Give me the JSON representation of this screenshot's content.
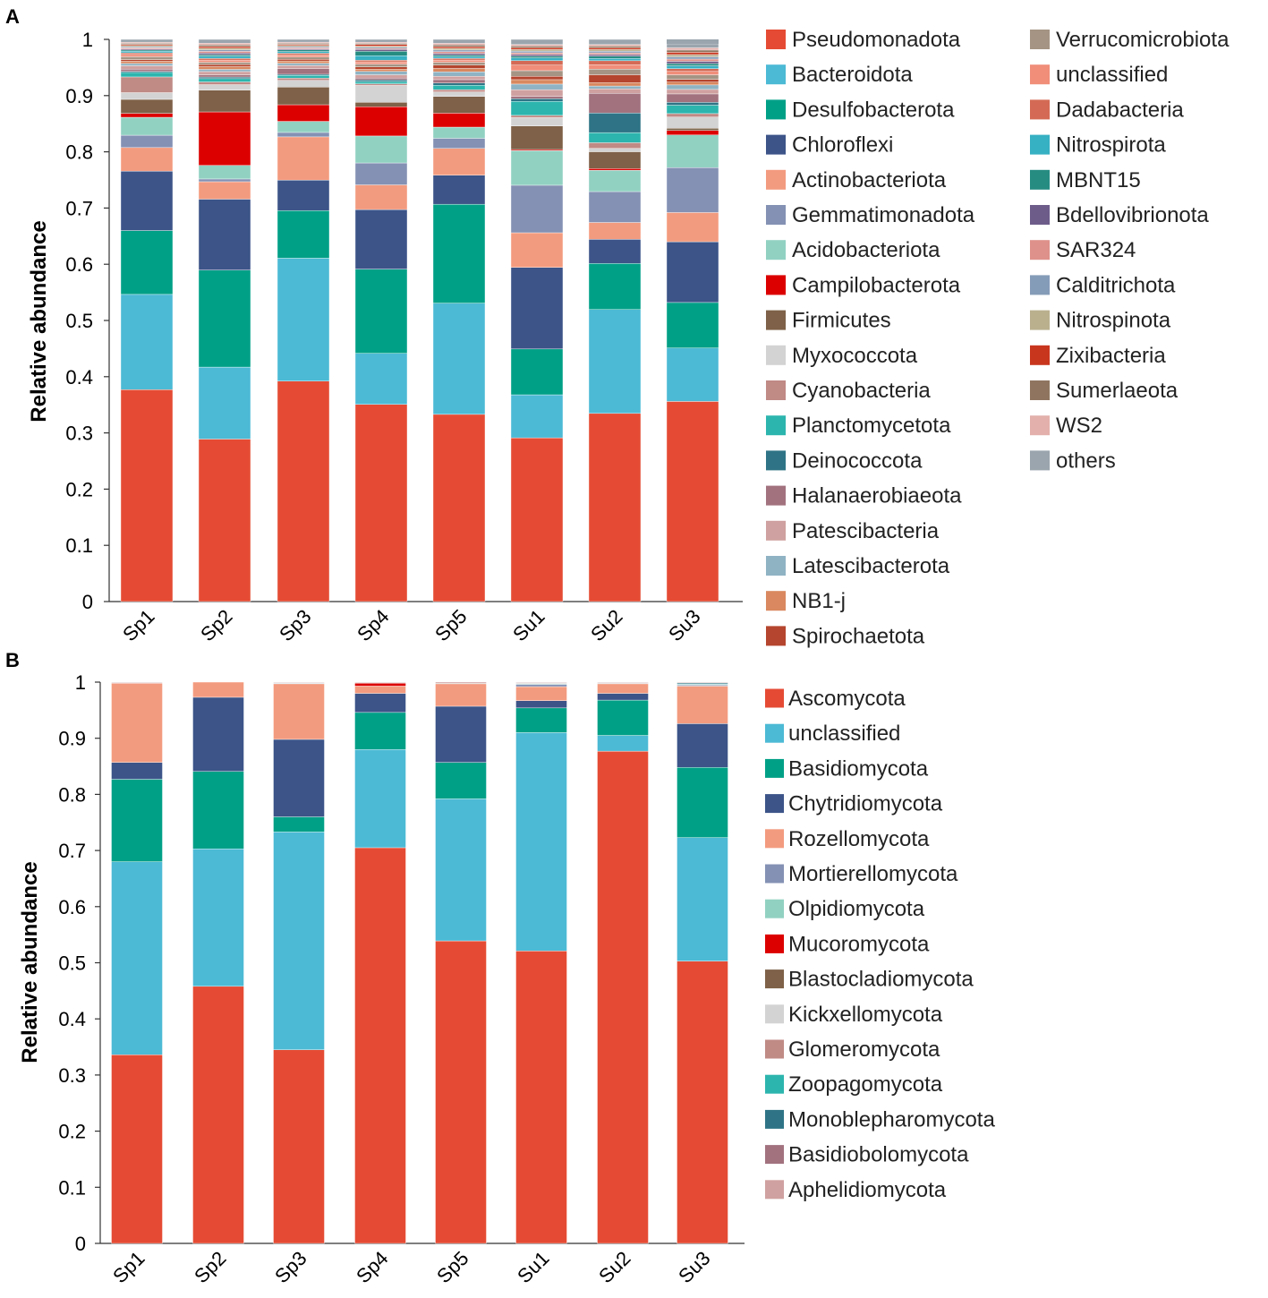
{
  "chart_data": [
    {
      "panel": "A",
      "type": "bar",
      "stacked": true,
      "ylabel": "Relative abundance",
      "xlabel": "",
      "ylim": [
        0,
        1
      ],
      "yticks": [
        "0",
        "0.1",
        "0.2",
        "0.3",
        "0.4",
        "0.5",
        "0.6",
        "0.7",
        "0.8",
        "0.9",
        "1"
      ],
      "categories": [
        "Sp1",
        "Sp2",
        "Sp3",
        "Sp4",
        "Sp5",
        "Su1",
        "Su2",
        "Su3"
      ],
      "series": [
        {
          "name": "Pseudomonadota",
          "color": "#E54B34",
          "values": [
            0.378,
            0.298,
            0.398,
            0.351,
            0.335,
            0.293,
            0.335,
            0.356
          ]
        },
        {
          "name": "Bacteroidota",
          "color": "#4CBAD5",
          "values": [
            0.17,
            0.132,
            0.222,
            0.091,
            0.199,
            0.077,
            0.185,
            0.095
          ]
        },
        {
          "name": "Desulfobacterota",
          "color": "#00A087",
          "values": [
            0.114,
            0.178,
            0.086,
            0.15,
            0.177,
            0.082,
            0.082,
            0.081
          ]
        },
        {
          "name": "Chloroflexi",
          "color": "#3C5488",
          "values": [
            0.106,
            0.13,
            0.055,
            0.106,
            0.052,
            0.146,
            0.043,
            0.108
          ]
        },
        {
          "name": "Actinobacteriota",
          "color": "#F39B7F",
          "values": [
            0.042,
            0.032,
            0.078,
            0.044,
            0.048,
            0.062,
            0.03,
            0.052
          ]
        },
        {
          "name": "Gemmatimonadota",
          "color": "#8491B4",
          "values": [
            0.022,
            0.005,
            0.008,
            0.039,
            0.018,
            0.085,
            0.055,
            0.08
          ]
        },
        {
          "name": "Acidobacteriota",
          "color": "#91D1C2",
          "values": [
            0.032,
            0.025,
            0.02,
            0.048,
            0.02,
            0.062,
            0.038,
            0.058
          ]
        },
        {
          "name": "Campilobacterota",
          "color": "#DC0000",
          "values": [
            0.007,
            0.098,
            0.03,
            0.052,
            0.025,
            0.002,
            0.003,
            0.008
          ]
        },
        {
          "name": "Firmicutes",
          "color": "#7E6148",
          "values": [
            0.025,
            0.04,
            0.032,
            0.008,
            0.03,
            0.042,
            0.03,
            0.004
          ]
        },
        {
          "name": "Myxococcota",
          "color": "#D3D3D3",
          "values": [
            0.012,
            0.01,
            0.012,
            0.03,
            0.008,
            0.015,
            0.006,
            0.02
          ]
        },
        {
          "name": "Cyanobacteria",
          "color": "#C08A85",
          "values": [
            0.028,
            0.005,
            0.004,
            0.003,
            0.004,
            0.004,
            0.01,
            0.006
          ]
        },
        {
          "name": "Planctomycetota",
          "color": "#2CB5AE",
          "values": [
            0.008,
            0.006,
            0.005,
            0.004,
            0.008,
            0.025,
            0.018,
            0.015
          ]
        },
        {
          "name": "Deinococcota",
          "color": "#2E7486",
          "values": [
            0.002,
            0.003,
            0.002,
            0.003,
            0.004,
            0.005,
            0.035,
            0.005
          ]
        },
        {
          "name": "Halanaerobiaeota",
          "color": "#A2727F",
          "values": [
            0.004,
            0.004,
            0.01,
            0.003,
            0.006,
            0.004,
            0.035,
            0.015
          ]
        },
        {
          "name": "Patescibacteria",
          "color": "#CFA1A0",
          "values": [
            0.006,
            0.006,
            0.006,
            0.006,
            0.006,
            0.012,
            0.008,
            0.008
          ]
        },
        {
          "name": "Latescibacterota",
          "color": "#8FB3C3",
          "values": [
            0.004,
            0.004,
            0.004,
            0.006,
            0.008,
            0.01,
            0.005,
            0.008
          ]
        },
        {
          "name": "NB1-j",
          "color": "#D9885F",
          "values": [
            0.004,
            0.005,
            0.004,
            0.004,
            0.006,
            0.008,
            0.006,
            0.005
          ]
        },
        {
          "name": "Spirochaetota",
          "color": "#B5452E",
          "values": [
            0.003,
            0.004,
            0.003,
            0.004,
            0.006,
            0.006,
            0.014,
            0.005
          ]
        },
        {
          "name": "Verrucomicrobiota",
          "color": "#A59484",
          "values": [
            0.005,
            0.004,
            0.004,
            0.005,
            0.005,
            0.01,
            0.01,
            0.008
          ]
        },
        {
          "name": "unclassified",
          "color": "#F08E7A",
          "values": [
            0.004,
            0.004,
            0.004,
            0.004,
            0.004,
            0.01,
            0.008,
            0.006
          ]
        },
        {
          "name": "Dadabacteria",
          "color": "#D46A55",
          "values": [
            0.003,
            0.003,
            0.003,
            0.003,
            0.003,
            0.008,
            0.007,
            0.005
          ]
        },
        {
          "name": "Nitrospirota",
          "color": "#36B0C3",
          "values": [
            0.003,
            0.004,
            0.003,
            0.008,
            0.003,
            0.005,
            0.004,
            0.005
          ]
        },
        {
          "name": "MBNT15",
          "color": "#268C82",
          "values": [
            0.002,
            0.003,
            0.003,
            0.008,
            0.003,
            0.003,
            0.004,
            0.004
          ]
        },
        {
          "name": "Bdellovibrionota",
          "color": "#6D5C8A",
          "values": [
            0.002,
            0.003,
            0.002,
            0.003,
            0.003,
            0.003,
            0.003,
            0.004
          ]
        },
        {
          "name": "SAR324",
          "color": "#DE918A",
          "values": [
            0.002,
            0.003,
            0.002,
            0.002,
            0.003,
            0.003,
            0.003,
            0.004
          ]
        },
        {
          "name": "Calditrichota",
          "color": "#859CB8",
          "values": [
            0.002,
            0.003,
            0.002,
            0.002,
            0.003,
            0.003,
            0.003,
            0.004
          ]
        },
        {
          "name": "Nitrospinota",
          "color": "#BAB08E",
          "values": [
            0.002,
            0.003,
            0.002,
            0.002,
            0.003,
            0.003,
            0.003,
            0.004
          ]
        },
        {
          "name": "Zixibacteria",
          "color": "#C9361E",
          "values": [
            0.002,
            0.003,
            0.002,
            0.003,
            0.003,
            0.003,
            0.003,
            0.004
          ]
        },
        {
          "name": "Sumerlaeota",
          "color": "#8F7560",
          "values": [
            0.002,
            0.003,
            0.002,
            0.002,
            0.003,
            0.003,
            0.003,
            0.004
          ]
        },
        {
          "name": "WS2",
          "color": "#E3B0AB",
          "values": [
            0.002,
            0.003,
            0.002,
            0.002,
            0.003,
            0.003,
            0.003,
            0.004
          ]
        },
        {
          "name": "others",
          "color": "#9AA5AD",
          "values": [
            0.005,
            0.007,
            0.005,
            0.005,
            0.007,
            0.009,
            0.009,
            0.007
          ]
        }
      ]
    },
    {
      "panel": "B",
      "type": "bar",
      "stacked": true,
      "ylabel": "Relative abundance",
      "xlabel": "",
      "ylim": [
        0,
        1
      ],
      "yticks": [
        "0",
        "0.1",
        "0.2",
        "0.3",
        "0.4",
        "0.5",
        "0.6",
        "0.7",
        "0.8",
        "0.9",
        "1"
      ],
      "categories": [
        "Sp1",
        "Sp2",
        "Sp3",
        "Sp4",
        "Sp5",
        "Su1",
        "Su2",
        "Su3"
      ],
      "series": [
        {
          "name": "Ascomycota",
          "color": "#E54B34",
          "values": [
            0.336,
            0.458,
            0.345,
            0.705,
            0.539,
            0.521,
            0.877,
            0.503
          ]
        },
        {
          "name": "unclassified",
          "color": "#4CBAD5",
          "values": [
            0.344,
            0.245,
            0.388,
            0.175,
            0.253,
            0.389,
            0.028,
            0.22
          ]
        },
        {
          "name": "Basidiomycota",
          "color": "#00A087",
          "values": [
            0.147,
            0.138,
            0.027,
            0.066,
            0.065,
            0.044,
            0.063,
            0.125
          ]
        },
        {
          "name": "Chytridiomycota",
          "color": "#3C5488",
          "values": [
            0.03,
            0.132,
            0.138,
            0.034,
            0.1,
            0.013,
            0.012,
            0.078
          ]
        },
        {
          "name": "Rozellomycota",
          "color": "#F39B7F",
          "values": [
            0.141,
            0.027,
            0.099,
            0.013,
            0.04,
            0.025,
            0.017,
            0.067
          ]
        },
        {
          "name": "Mortierellomycota",
          "color": "#8491B4",
          "values": [
            0.001,
            0.0,
            0.001,
            0.0,
            0.0,
            0.004,
            0.0,
            0.002
          ]
        },
        {
          "name": "Olpidiomycota",
          "color": "#91D1C2",
          "values": [
            0.0,
            0.0,
            0.001,
            0.0,
            0.0,
            0.001,
            0.0,
            0.001
          ]
        },
        {
          "name": "Mucoromycota",
          "color": "#DC0000",
          "values": [
            0.0,
            0.0,
            0.0,
            0.005,
            0.0,
            0.0,
            0.0,
            0.0
          ]
        },
        {
          "name": "Blastocladiomycota",
          "color": "#7E6148",
          "values": [
            0.0,
            0.0,
            0.0,
            0.001,
            0.001,
            0.0,
            0.0,
            0.0
          ]
        },
        {
          "name": "Kickxellomycota",
          "color": "#D3D3D3",
          "values": [
            0.0,
            0.0,
            0.0,
            0.0,
            0.0,
            0.0,
            0.0,
            0.0
          ]
        },
        {
          "name": "Glomeromycota",
          "color": "#C08A85",
          "values": [
            0.0,
            0.0,
            0.0,
            0.0,
            0.0,
            0.001,
            0.001,
            0.0
          ]
        },
        {
          "name": "Zoopagomycota",
          "color": "#2CB5AE",
          "values": [
            0.0,
            0.0,
            0.0,
            0.0,
            0.0,
            0.0,
            0.0,
            0.001
          ]
        },
        {
          "name": "Monoblepharomycota",
          "color": "#2E7486",
          "values": [
            0.0,
            0.0,
            0.0,
            0.0,
            0.0,
            0.001,
            0.001,
            0.002
          ]
        },
        {
          "name": "Basidiobolomycota",
          "color": "#A2727F",
          "values": [
            0.0,
            0.0,
            0.0,
            0.0,
            0.0,
            0.0,
            0.0,
            0.0
          ]
        },
        {
          "name": "Aphelidiomycota",
          "color": "#CFA1A0",
          "values": [
            0.001,
            0.0,
            0.001,
            0.001,
            0.002,
            0.001,
            0.001,
            0.001
          ]
        }
      ]
    }
  ]
}
